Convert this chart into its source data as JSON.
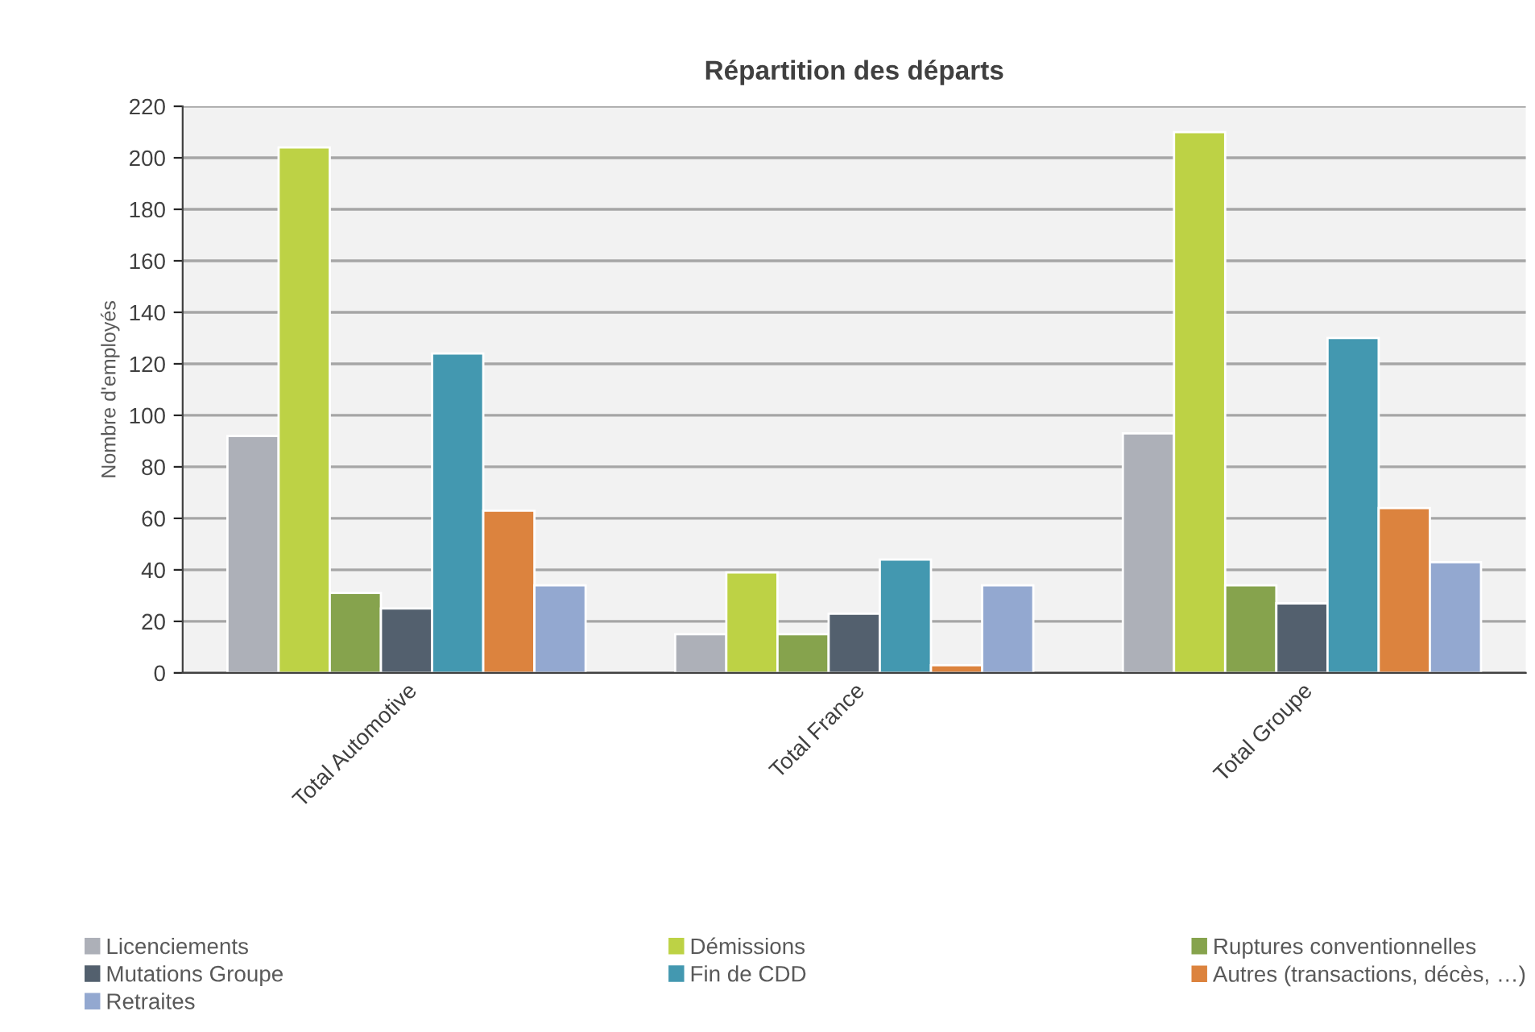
{
  "chart_data": {
    "type": "bar",
    "title": "Répartition des départs",
    "ylabel": "Nombre d'employés",
    "categories": [
      "Total Automotive",
      "Total France",
      "Total Groupe"
    ],
    "series": [
      {
        "name": "Licenciements",
        "color": "#adb0b8",
        "values": [
          92,
          15,
          93
        ]
      },
      {
        "name": "Démissions",
        "color": "#bdd245",
        "values": [
          204,
          39,
          210
        ]
      },
      {
        "name": "Ruptures conventionnelles",
        "color": "#86a34d",
        "values": [
          31,
          15,
          34
        ]
      },
      {
        "name": "Mutations Groupe",
        "color": "#53606e",
        "values": [
          25,
          23,
          27
        ]
      },
      {
        "name": "Fin de CDD",
        "color": "#4398b0",
        "values": [
          124,
          44,
          130
        ]
      },
      {
        "name": "Autres (transactions, décès, …)",
        "color": "#dc833e",
        "values": [
          63,
          3,
          64
        ]
      },
      {
        "name": "Retraites",
        "color": "#93a8d0",
        "values": [
          34,
          34,
          43
        ]
      }
    ],
    "ylim": [
      0,
      220
    ],
    "yticks": [
      0,
      20,
      40,
      60,
      80,
      100,
      120,
      140,
      160,
      180,
      200,
      220
    ],
    "grid": "y",
    "legend": "bottom"
  }
}
